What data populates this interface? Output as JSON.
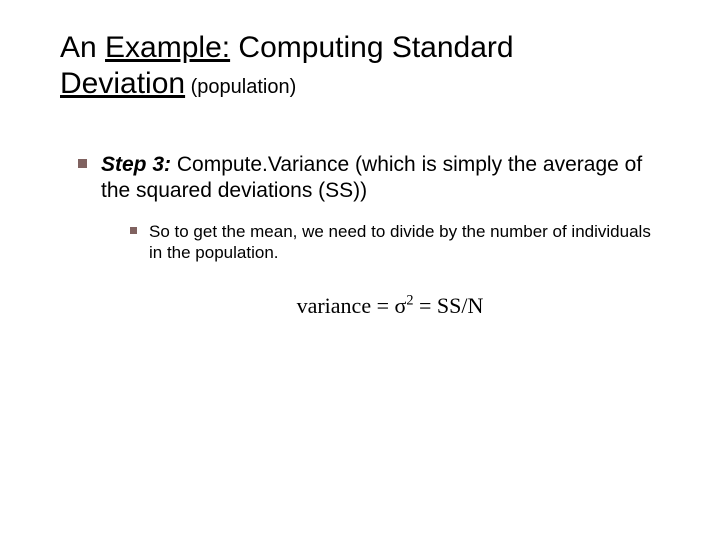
{
  "title": {
    "line1_prefix": "An ",
    "line1_underlined": "Example:",
    "line1_suffix": " Computing Standard",
    "line2_underlined": "Deviation",
    "line2_sub": " (population)"
  },
  "lvl1": {
    "step_label": "Step 3:",
    "text_after_step": " Compute.Variance (which is simply the average of the squared deviations (SS))"
  },
  "lvl2": {
    "text": "So to get the mean, we need to divide by the number of individuals in the population."
  },
  "formula": {
    "lhs": "variance = ",
    "sigma": "σ",
    "sup": "2",
    "rhs": " = SS/N"
  },
  "colors": {
    "bullet": "#806260",
    "text": "#000000",
    "background": "#ffffff"
  },
  "fonts": {
    "title_size": 30,
    "title_sub_size": 20,
    "lvl1_size": 21,
    "lvl2_size": 17,
    "formula_size": 22,
    "formula_family": "Times New Roman"
  }
}
